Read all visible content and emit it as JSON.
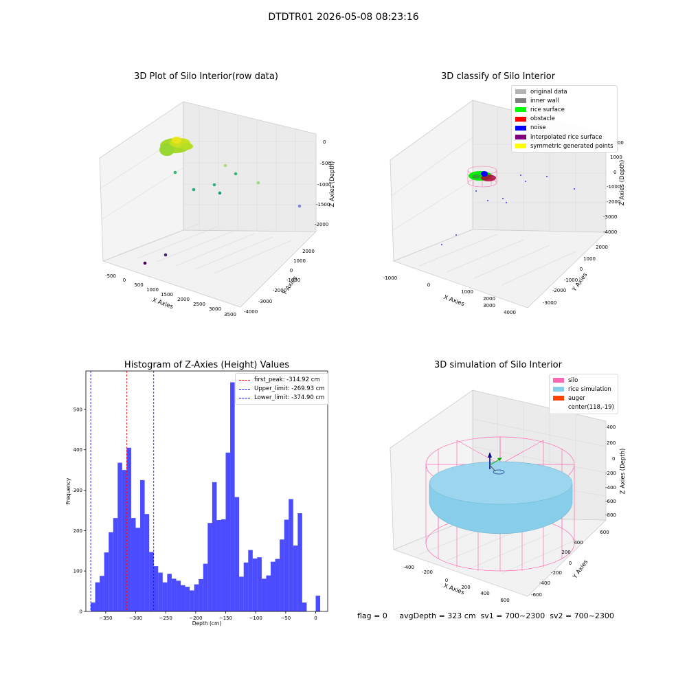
{
  "suptitle": "DTDTR01 2026-05-08 08:23:16",
  "panels": {
    "raw": {
      "title": "3D Plot of Silo Interior(row data)",
      "xlabel": "X Axies",
      "ylabel": "Y Axies",
      "zlabel": "Z Axies (Depth)",
      "xticks": [
        "-500",
        "0",
        "500",
        "1000",
        "1500",
        "2000",
        "2500",
        "3000",
        "3500"
      ],
      "yticks": [
        "-4000",
        "-3000",
        "-2000",
        "-1000",
        "0",
        "1000",
        "2000"
      ],
      "zticks": [
        "0",
        "-500",
        "-1000",
        "-1500",
        "-2000"
      ]
    },
    "classify": {
      "title": "3D classify of Silo Interior",
      "xlabel": "X Axies",
      "ylabel": "Y Axies",
      "zlabel": "Z Axies (Depth)",
      "xticks": [
        "-1000",
        "0",
        "1000",
        "2000",
        "3000",
        "4000"
      ],
      "yticks": [
        "-3000",
        "-2000",
        "-1000",
        "0",
        "1000",
        "2000"
      ],
      "zticks": [
        "-4000",
        "-3000",
        "-2000",
        "-1000",
        "0",
        "1000",
        "2000"
      ],
      "legend": [
        {
          "label": "original data",
          "color": "#b3b3b3"
        },
        {
          "label": "inner wall",
          "color": "#808080"
        },
        {
          "label": "rice surface",
          "color": "#00ff00"
        },
        {
          "label": "obstacle",
          "color": "#ff0000"
        },
        {
          "label": "noise",
          "color": "#0000ff"
        },
        {
          "label": "interpolated rice surface",
          "color": "#800080"
        },
        {
          "label": "symmetric generated points",
          "color": "#ffff00"
        }
      ]
    },
    "simulation": {
      "title": "3D simulation of Silo Interior",
      "xlabel": "X Axies",
      "ylabel": "Y Axies",
      "zlabel": "Z Axies (Depth)",
      "xticks": [
        "-400",
        "-200",
        "0",
        "200",
        "400",
        "600"
      ],
      "yticks": [
        "-600",
        "-400",
        "-200",
        "0",
        "200",
        "400",
        "600"
      ],
      "zticks": [
        "400",
        "200",
        "0",
        "-200",
        "-400",
        "-600",
        "-800"
      ],
      "legend": [
        {
          "label": "silo",
          "color": "#ff69b4"
        },
        {
          "label": "rice simulation",
          "color": "#87ceeb"
        },
        {
          "label": "auger",
          "color": "#ff4500"
        },
        {
          "label": "center(118,-19)",
          "color": ""
        }
      ]
    }
  },
  "chart_data": {
    "type": "bar",
    "title": "Histogram of Z-Axies (Height) Values",
    "xlabel": "Depth (cm)",
    "ylabel": "Frequency",
    "xlim": [
      -383,
      20
    ],
    "ylim": [
      0,
      595
    ],
    "xticks": [
      -350,
      -300,
      -250,
      -200,
      -150,
      -100,
      -50,
      0
    ],
    "yticks": [
      0,
      100,
      200,
      300,
      400,
      500
    ],
    "bin_start": -375,
    "bin_width": 7.5,
    "values": [
      22,
      72,
      88,
      146,
      196,
      231,
      368,
      350,
      405,
      231,
      207,
      325,
      241,
      147,
      112,
      96,
      72,
      93,
      81,
      76,
      65,
      61,
      52,
      67,
      80,
      118,
      219,
      320,
      226,
      228,
      393,
      567,
      283,
      86,
      121,
      152,
      131,
      134,
      81,
      89,
      123,
      130,
      178,
      227,
      278,
      163,
      243,
      22,
      0,
      0,
      39
    ],
    "bar_color": "#0000ff",
    "vlines": [
      {
        "x": -314.92,
        "color": "#ff0000",
        "label": "first_peak: -314.92 cm"
      },
      {
        "x": -269.93,
        "color": "#0000ff",
        "label": "Upper_limit: -269.93 cm"
      },
      {
        "x": -374.9,
        "color": "#0000ff",
        "label": "Lower_limit: -374.90 cm"
      }
    ]
  },
  "footer": {
    "flag": "flag = 0",
    "avg": "avgDepth = 323 cm",
    "sv1": "sv1 = 700~2300",
    "sv2": "sv2 = 700~2300"
  }
}
